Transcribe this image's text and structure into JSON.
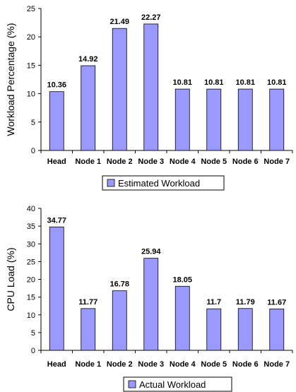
{
  "chart_data": [
    {
      "type": "bar",
      "categories": [
        "Head",
        "Node 1",
        "Node 2",
        "Node 3",
        "Node 4",
        "Node 5",
        "Node 6",
        "Node 7"
      ],
      "series": [
        {
          "name": "Estimated Workload",
          "values": [
            10.36,
            14.92,
            21.49,
            22.27,
            10.81,
            10.81,
            10.81,
            10.81
          ]
        }
      ],
      "data_labels": [
        "10.36",
        "14.92",
        "21.49",
        "22.27",
        "10.81",
        "10.81",
        "10.81",
        "10.81"
      ],
      "ylabel": "Workload Percentage (%)",
      "xlabel": "",
      "ylim": [
        0,
        25
      ],
      "yticks": [
        0,
        5,
        10,
        15,
        20,
        25
      ],
      "grid": false,
      "legend_position": "bottom",
      "bar_color": "#9999ff"
    },
    {
      "type": "bar",
      "categories": [
        "Head",
        "Node 1",
        "Node 2",
        "Node 3",
        "Node 4",
        "Node 5",
        "Node 6",
        "Node 7"
      ],
      "series": [
        {
          "name": "Actual Workload",
          "values": [
            34.77,
            11.77,
            16.78,
            25.94,
            18.05,
            11.7,
            11.79,
            11.67
          ]
        }
      ],
      "data_labels": [
        "34.77",
        "11.77",
        "16.78",
        "25.94",
        "18.05",
        "11.7",
        "11.79",
        "11.67"
      ],
      "ylabel": "CPU Load (%)",
      "xlabel": "",
      "ylim": [
        0,
        40
      ],
      "yticks": [
        0,
        5,
        10,
        15,
        20,
        25,
        30,
        35,
        40
      ],
      "grid": false,
      "legend_position": "bottom",
      "bar_color": "#9999ff"
    }
  ]
}
